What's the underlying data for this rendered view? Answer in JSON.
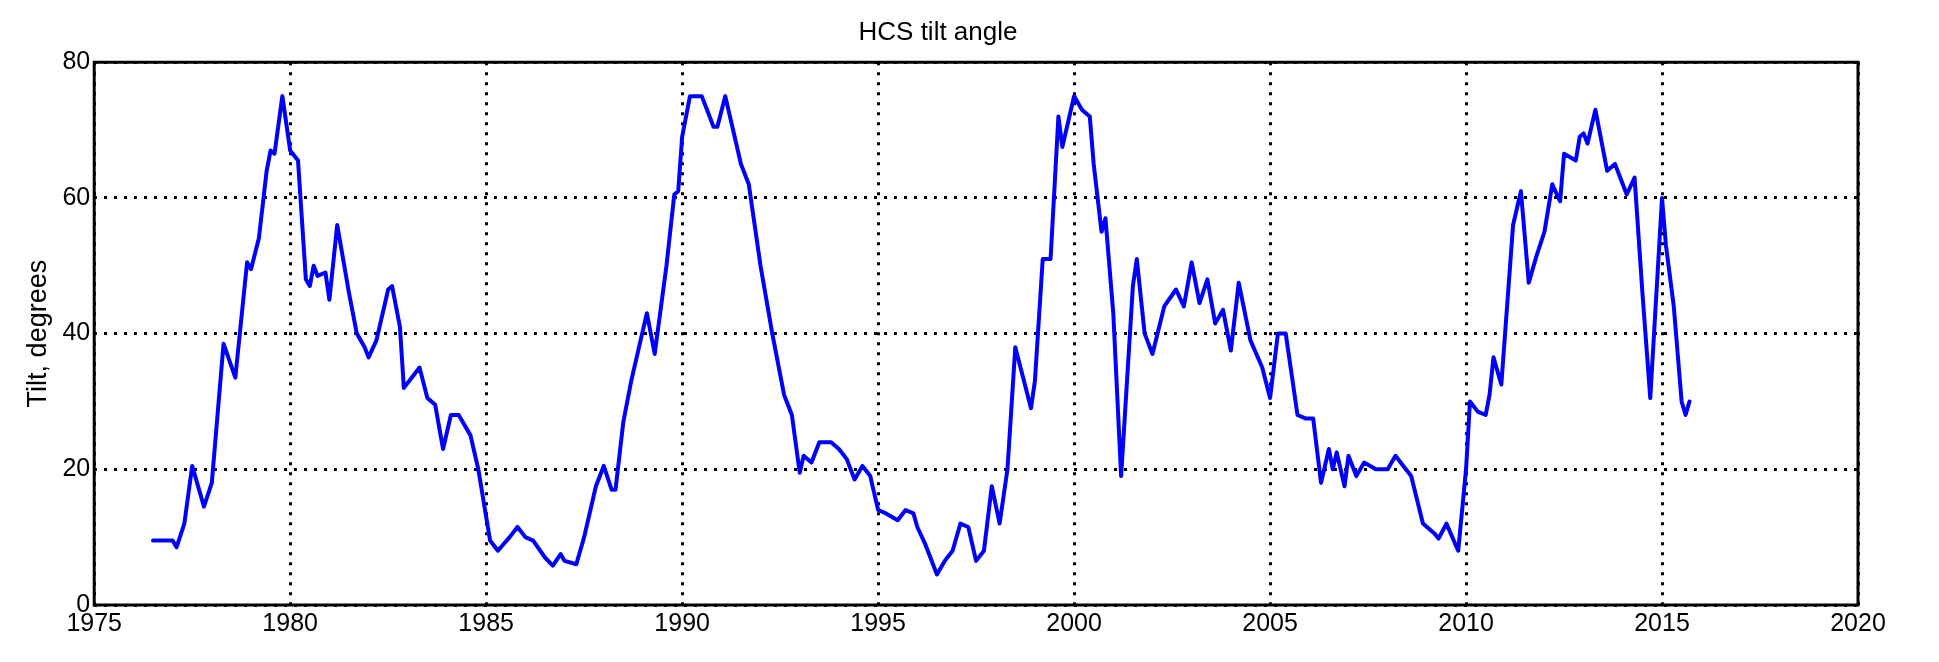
{
  "chart_data": {
    "type": "line",
    "title": "HCS tilt angle",
    "ylabel": "Tilt, degrees",
    "xlim": [
      1975,
      2020
    ],
    "xticks": [
      1975,
      1980,
      1985,
      1990,
      1995,
      2000,
      2005,
      2010,
      2015,
      2020
    ],
    "ylim": [
      0,
      80
    ],
    "yticks": [
      0,
      20,
      40,
      60,
      80
    ],
    "grid": true,
    "legend": false,
    "marker": "none",
    "line_style": "solid",
    "series": [
      {
        "color": "#0000ff",
        "x": [
          1976.5,
          1976.8,
          1977.0,
          1977.1,
          1977.3,
          1977.5,
          1977.8,
          1978.0,
          1978.3,
          1978.6,
          1978.9,
          1979.0,
          1979.2,
          1979.4,
          1979.5,
          1979.6,
          1979.8,
          1980.0,
          1980.2,
          1980.4,
          1980.5,
          1980.6,
          1980.7,
          1980.9,
          1981.0,
          1981.2,
          1981.5,
          1981.7,
          1981.9,
          1982.0,
          1982.2,
          1982.5,
          1982.6,
          1982.8,
          1982.9,
          1983.1,
          1983.3,
          1983.5,
          1983.7,
          1983.9,
          1984.1,
          1984.3,
          1984.6,
          1984.8,
          1985.1,
          1985.3,
          1985.6,
          1985.8,
          1986.0,
          1986.2,
          1986.5,
          1986.7,
          1986.9,
          1987.0,
          1987.3,
          1987.5,
          1987.8,
          1988.0,
          1988.2,
          1988.3,
          1988.5,
          1988.7,
          1988.9,
          1989.1,
          1989.3,
          1989.6,
          1989.8,
          1989.9,
          1990.0,
          1990.2,
          1990.5,
          1990.6,
          1990.8,
          1990.9,
          1991.1,
          1991.3,
          1991.5,
          1991.7,
          1992.0,
          1992.3,
          1992.6,
          1992.8,
          1993.0,
          1993.1,
          1993.3,
          1993.5,
          1993.8,
          1994.0,
          1994.2,
          1994.4,
          1994.6,
          1994.8,
          1995.0,
          1995.2,
          1995.5,
          1995.7,
          1995.9,
          1996.0,
          1996.2,
          1996.4,
          1996.5,
          1996.7,
          1996.9,
          1997.1,
          1997.3,
          1997.5,
          1997.7,
          1997.9,
          1998.1,
          1998.3,
          1998.5,
          1998.9,
          1999.0,
          1999.2,
          1999.4,
          1999.6,
          1999.7,
          2000.0,
          2000.2,
          2000.4,
          2000.5,
          2000.7,
          2000.8,
          2001.0,
          2001.2,
          2001.5,
          2001.6,
          2001.8,
          2002.0,
          2002.3,
          2002.6,
          2002.8,
          2003.0,
          2003.2,
          2003.4,
          2003.6,
          2003.8,
          2004.0,
          2004.2,
          2004.5,
          2004.8,
          2005.0,
          2005.2,
          2005.4,
          2005.7,
          2005.9,
          2006.1,
          2006.3,
          2006.5,
          2006.6,
          2006.7,
          2006.9,
          2007.0,
          2007.2,
          2007.4,
          2007.7,
          2008.0,
          2008.2,
          2008.4,
          2008.6,
          2008.9,
          2009.2,
          2009.3,
          2009.5,
          2009.8,
          2010.0,
          2010.1,
          2010.3,
          2010.5,
          2010.6,
          2010.7,
          2010.9,
          2011.2,
          2011.4,
          2011.6,
          2011.8,
          2012.0,
          2012.2,
          2012.4,
          2012.5,
          2012.8,
          2012.9,
          2013.0,
          2013.1,
          2013.3,
          2013.6,
          2013.8,
          2014.1,
          2014.3,
          2014.5,
          2014.7,
          2015.0,
          2015.1,
          2015.3,
          2015.5,
          2015.6,
          2015.7
        ],
        "values": [
          9.5,
          9.5,
          9.5,
          8.5,
          12,
          20.5,
          14.5,
          18,
          38.5,
          33.5,
          50.5,
          49.5,
          54,
          64,
          67,
          66.5,
          75,
          67,
          65.5,
          48,
          47,
          50,
          48.5,
          49,
          45,
          56,
          46,
          40,
          38,
          36.5,
          39,
          46.5,
          47,
          41,
          32,
          33.5,
          35,
          30.5,
          29.5,
          23,
          28,
          28,
          25,
          20,
          9.5,
          8,
          10,
          11.5,
          10,
          9.5,
          7,
          5.8,
          7.5,
          6.5,
          6,
          10,
          17.5,
          20.5,
          17,
          17,
          27,
          33,
          38,
          43,
          37,
          50,
          60.5,
          61,
          69,
          75,
          75,
          73.5,
          70.5,
          70.5,
          75,
          70,
          65,
          62,
          50,
          40,
          31,
          28,
          19.5,
          22,
          21,
          24,
          24,
          23,
          21.5,
          18.5,
          20.5,
          19,
          14,
          13.5,
          12.5,
          14,
          13.5,
          11.5,
          9,
          6,
          4.5,
          6.5,
          8,
          12,
          11.5,
          6.5,
          8,
          17.5,
          12,
          20,
          38,
          29,
          33,
          51,
          51,
          72,
          67.5,
          75,
          73,
          72,
          65,
          55,
          57,
          43,
          19,
          47,
          51,
          40,
          37,
          44,
          46.5,
          44,
          50.5,
          44.5,
          48,
          41.5,
          43.5,
          37.5,
          47.5,
          39,
          35,
          30.5,
          40,
          40,
          28,
          27.5,
          27.5,
          18,
          23,
          20,
          22.5,
          17.5,
          22,
          19,
          21,
          20,
          20,
          22,
          20.5,
          19,
          12,
          10.5,
          9.8,
          12,
          8,
          20,
          30,
          28.5,
          28,
          31,
          36.5,
          32.5,
          56,
          61,
          47.5,
          51.5,
          55,
          62,
          59.5,
          66.5,
          65.5,
          69,
          69.5,
          68,
          73,
          64,
          65,
          60.5,
          63,
          46,
          30.5,
          60,
          53,
          44,
          30,
          28,
          30
        ]
      }
    ]
  }
}
